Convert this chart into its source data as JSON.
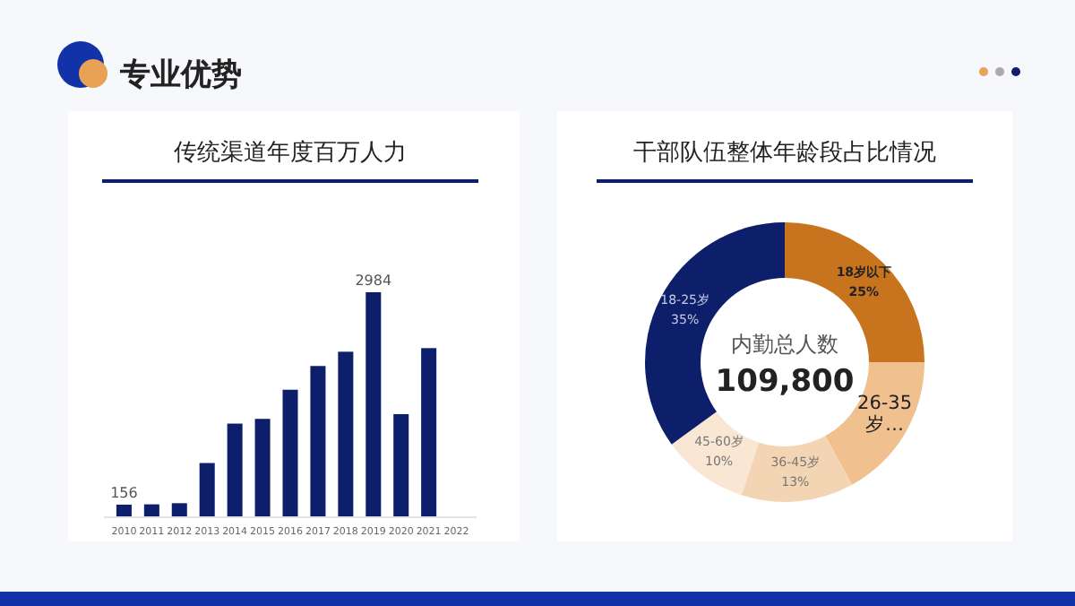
{
  "chart_data": [
    {
      "type": "bar",
      "title": "传统渠道年度百万人力",
      "annotations": [
        "专业优势"
      ],
      "categories": [
        "2010",
        "2011",
        "2012",
        "2013",
        "2014",
        "2015",
        "2016",
        "2017",
        "2018",
        "2019",
        "2020",
        "2021",
        "2022"
      ],
      "values": [
        156,
        160,
        175,
        710,
        1235,
        1298,
        1686,
        2002,
        2192,
        2984,
        1361,
        2240,
        null
      ],
      "value_labels": [
        "156",
        null,
        null,
        null,
        null,
        null,
        null,
        null,
        null,
        "2984",
        null,
        null,
        null
      ],
      "color": "#0d1e6b"
    },
    {
      "type": "donut",
      "title": "干部队伍整体年龄段占比情况",
      "annotations": [
        "内勤总人数",
        "109,800"
      ],
      "categories": [
        "18岁以下",
        "26-35岁…",
        "36-45岁",
        "45-60岁",
        "18-25岁"
      ],
      "values": [
        25,
        17,
        13,
        10,
        35
      ],
      "value_labels": [
        "25%",
        null,
        "13%",
        "10%",
        "35%"
      ],
      "colors": [
        "#c8741f",
        "#f0c08e",
        "#f4d5b3",
        "#f9e6d3",
        "#0d1e6b"
      ]
    }
  ]
}
